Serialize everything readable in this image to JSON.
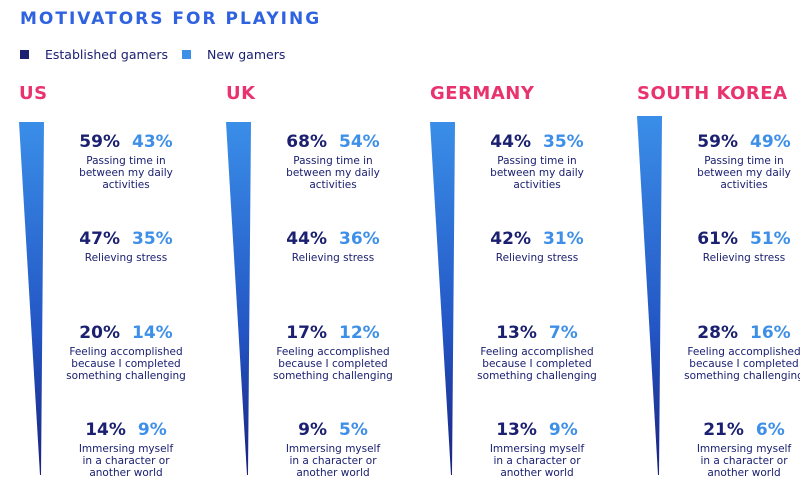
{
  "title": "MOTIVATORS FOR PLAYING",
  "legend": [
    {
      "label": "Established gamers",
      "color": "#1b2070"
    },
    {
      "label": "New gamers",
      "color": "#3e8fe8"
    }
  ],
  "colors": {
    "country": "#e8336f",
    "title": "#2f62e0"
  },
  "chart_data": {
    "type": "table",
    "title": "MOTIVATORS FOR PLAYING",
    "categories": [
      "Passing time in between my daily activities",
      "Relieving stress",
      "Feeling accomplished because I completed something challenging",
      "Immersing myself in a character or another world"
    ],
    "countries": [
      {
        "name": "US",
        "established": [
          "59%",
          "47%",
          "20%",
          "14%"
        ],
        "new": [
          "43%",
          "35%",
          "14%",
          "9%"
        ]
      },
      {
        "name": "UK",
        "established": [
          "68%",
          "44%",
          "17%",
          "9%"
        ],
        "new": [
          "54%",
          "36%",
          "12%",
          "5%"
        ]
      },
      {
        "name": "GERMANY",
        "established": [
          "44%",
          "42%",
          "13%",
          "13%"
        ],
        "new": [
          "35%",
          "31%",
          "7%",
          "9%"
        ]
      },
      {
        "name": "SOUTH KOREA",
        "established": [
          "59%",
          "61%",
          "28%",
          "21%"
        ],
        "new": [
          "49%",
          "51%",
          "16%",
          "6%"
        ]
      }
    ]
  }
}
